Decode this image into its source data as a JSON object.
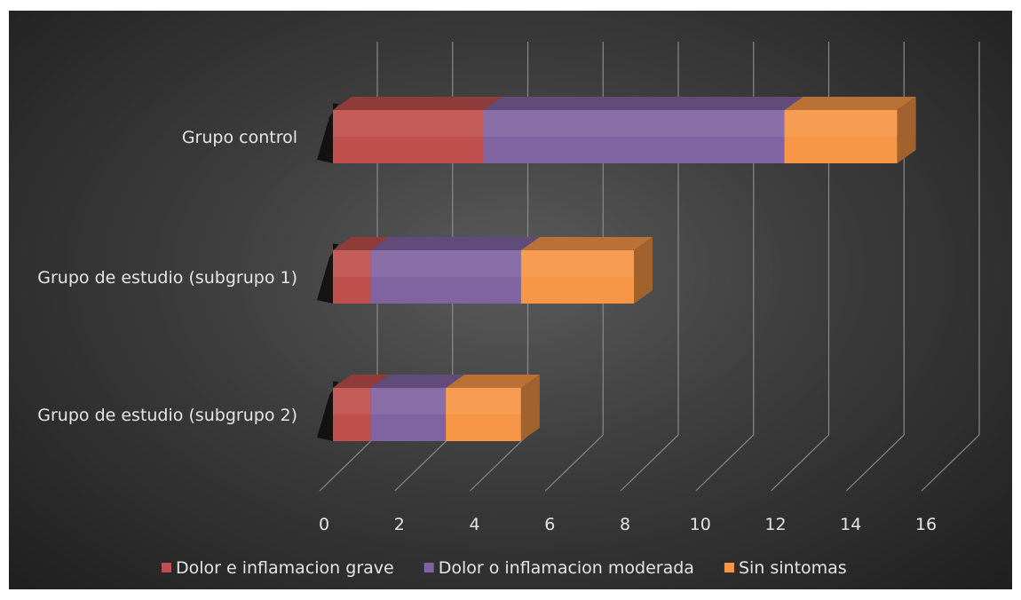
{
  "chart_data": {
    "type": "bar",
    "orientation": "horizontal",
    "stacked": true,
    "style": "3d",
    "categories": [
      "Grupo control",
      "Grupo de estudio (subgrupo 1)",
      "Grupo de estudio (subgrupo 2)"
    ],
    "series": [
      {
        "name": "Dolor e inflamacion grave",
        "values": [
          4,
          1,
          1
        ],
        "color": "#c0504d"
      },
      {
        "name": "Dolor o inflamacion moderada",
        "values": [
          8,
          4,
          2
        ],
        "color": "#8064a2"
      },
      {
        "name": "Sin sintomas",
        "values": [
          3,
          3,
          2
        ],
        "color": "#f79646"
      }
    ],
    "xlim": [
      0,
      16
    ],
    "xticks": [
      0,
      2,
      4,
      6,
      8,
      10,
      12,
      14,
      16
    ],
    "grid": true,
    "legend": "bottom",
    "title": "",
    "xlabel": "",
    "ylabel": ""
  }
}
